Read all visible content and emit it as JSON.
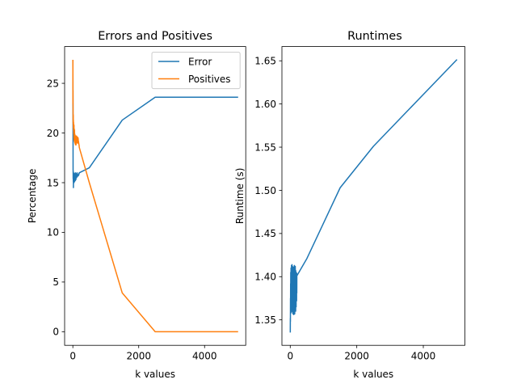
{
  "chart_data": [
    {
      "type": "line",
      "title": "Errors and Positives",
      "xlabel": "k values",
      "ylabel": "Percentage",
      "xlim": [
        -250,
        5250
      ],
      "ylim": [
        -1.37,
        28.7
      ],
      "xticks": [
        0,
        2000,
        4000
      ],
      "xtick_labels": [
        "0",
        "2000",
        "4000"
      ],
      "yticks": [
        0,
        5,
        10,
        15,
        20,
        25
      ],
      "ytick_labels": [
        "0",
        "5",
        "10",
        "15",
        "20",
        "25"
      ],
      "grid": false,
      "legend_position": "top-right",
      "series": [
        {
          "name": "Error",
          "color": "#1f77b4",
          "x": [
            1,
            3,
            5,
            7,
            9,
            11,
            13,
            15,
            17,
            19,
            21,
            23,
            25,
            27,
            29,
            31,
            33,
            35,
            37,
            39,
            41,
            43,
            45,
            47,
            49,
            51,
            53,
            55,
            57,
            59,
            61,
            63,
            65,
            67,
            69,
            71,
            73,
            75,
            77,
            79,
            81,
            83,
            85,
            87,
            89,
            91,
            93,
            95,
            97,
            99,
            101,
            103,
            105,
            107,
            109,
            111,
            113,
            115,
            117,
            119,
            121,
            123,
            125,
            127,
            129,
            131,
            133,
            135,
            137,
            139,
            141,
            143,
            145,
            147,
            149,
            151,
            153,
            155,
            157,
            159,
            161,
            163,
            165,
            167,
            169,
            171,
            173,
            175,
            177,
            179,
            181,
            183,
            185,
            187,
            189,
            191,
            193,
            195,
            197,
            199,
            500,
            1500,
            2500,
            5000
          ],
          "values": [
            27.3,
            24.1,
            22.0,
            16.3,
            15.4,
            16.2,
            15.1,
            15.9,
            14.5,
            15.6,
            15.3,
            16.0,
            15.0,
            15.7,
            15.2,
            15.4,
            15.0,
            15.8,
            15.3,
            15.6,
            15.1,
            15.6,
            15.2,
            15.9,
            15.4,
            15.5,
            15.1,
            15.7,
            15.3,
            15.6,
            15.2,
            15.5,
            15.3,
            15.8,
            15.4,
            15.6,
            15.2,
            16.0,
            15.4,
            15.6,
            15.3,
            15.7,
            15.5,
            15.9,
            15.4,
            15.6,
            15.3,
            15.8,
            15.5,
            15.6,
            15.6,
            15.7,
            15.5,
            15.9,
            15.6,
            15.7,
            15.5,
            15.8,
            15.6,
            15.8,
            15.7,
            15.7,
            15.6,
            16.0,
            15.6,
            15.7,
            15.7,
            15.8,
            15.6,
            15.7,
            15.7,
            15.8,
            15.7,
            15.7,
            15.7,
            15.8,
            15.7,
            15.8,
            15.7,
            15.7,
            15.8,
            15.8,
            15.8,
            15.7,
            15.8,
            15.8,
            15.8,
            15.9,
            15.8,
            15.9,
            15.8,
            15.9,
            15.9,
            15.9,
            15.9,
            15.9,
            16.0,
            16.0,
            16.0,
            16.0,
            16.5,
            21.3,
            23.6,
            23.6
          ]
        },
        {
          "name": "Positives",
          "color": "#ff7f0e",
          "x": [
            1,
            3,
            5,
            7,
            9,
            11,
            13,
            15,
            17,
            19,
            21,
            23,
            25,
            27,
            29,
            31,
            33,
            35,
            37,
            39,
            41,
            43,
            45,
            47,
            49,
            51,
            53,
            55,
            57,
            59,
            61,
            63,
            65,
            67,
            69,
            71,
            73,
            75,
            77,
            79,
            81,
            83,
            85,
            87,
            89,
            91,
            93,
            95,
            97,
            99,
            101,
            103,
            105,
            107,
            109,
            111,
            113,
            115,
            117,
            119,
            121,
            123,
            125,
            127,
            129,
            131,
            133,
            135,
            137,
            139,
            141,
            143,
            145,
            147,
            149,
            151,
            153,
            155,
            157,
            159,
            161,
            163,
            165,
            167,
            169,
            171,
            173,
            175,
            177,
            179,
            181,
            183,
            185,
            187,
            189,
            191,
            193,
            195,
            197,
            199,
            500,
            1500,
            2500,
            5000
          ],
          "values": [
            27.3,
            22.9,
            24.3,
            21.0,
            21.9,
            20.8,
            21.8,
            20.5,
            21.3,
            20.6,
            21.1,
            20.2,
            20.9,
            19.9,
            20.6,
            20.2,
            19.5,
            20.8,
            19.3,
            20.1,
            19.6,
            20.4,
            19.2,
            19.9,
            19.5,
            20.3,
            19.1,
            19.8,
            19.4,
            19.9,
            19.0,
            19.7,
            19.3,
            19.8,
            19.1,
            19.6,
            18.9,
            19.7,
            19.2,
            19.6,
            18.8,
            19.5,
            19.1,
            19.7,
            18.9,
            19.4,
            19.2,
            19.5,
            18.8,
            19.4,
            19.3,
            19.5,
            19.1,
            19.3,
            19.0,
            19.7,
            19.3,
            19.6,
            19.2,
            19.4,
            19.1,
            19.4,
            19.0,
            19.5,
            19.4,
            19.5,
            19.2,
            19.3,
            19.0,
            19.6,
            19.3,
            19.4,
            19.1,
            19.4,
            19.0,
            19.4,
            19.2,
            19.3,
            19.0,
            19.5,
            19.2,
            19.4,
            19.1,
            19.2,
            19.1,
            19.2,
            19.0,
            19.1,
            18.9,
            19.0,
            18.9,
            18.9,
            18.8,
            18.8,
            18.8,
            18.7,
            18.6,
            18.6,
            18.5,
            18.5,
            15.0,
            3.9,
            0.0,
            0.0
          ]
        }
      ]
    },
    {
      "type": "line",
      "title": "Runtimes",
      "xlabel": "k values",
      "ylabel": "Runtime (s)",
      "xlim": [
        -250,
        5250
      ],
      "ylim": [
        1.3205,
        1.6665
      ],
      "xticks": [
        0,
        2000,
        4000
      ],
      "xtick_labels": [
        "0",
        "2000",
        "4000"
      ],
      "yticks": [
        1.35,
        1.4,
        1.45,
        1.5,
        1.55,
        1.6,
        1.65
      ],
      "ytick_labels": [
        "1.35",
        "1.40",
        "1.45",
        "1.50",
        "1.55",
        "1.60",
        "1.65"
      ],
      "grid": false,
      "series": [
        {
          "color": "#1f77b4",
          "x": [
            1,
            3,
            5,
            7,
            9,
            11,
            13,
            15,
            17,
            19,
            21,
            23,
            25,
            27,
            29,
            31,
            33,
            35,
            37,
            39,
            41,
            43,
            45,
            47,
            49,
            51,
            53,
            55,
            57,
            59,
            61,
            63,
            65,
            67,
            69,
            71,
            73,
            75,
            77,
            79,
            81,
            83,
            85,
            87,
            89,
            91,
            93,
            95,
            97,
            99,
            101,
            103,
            105,
            107,
            109,
            111,
            113,
            115,
            117,
            119,
            121,
            123,
            125,
            127,
            129,
            131,
            133,
            135,
            137,
            139,
            141,
            143,
            145,
            147,
            149,
            151,
            153,
            155,
            157,
            159,
            161,
            163,
            165,
            167,
            169,
            171,
            173,
            175,
            177,
            179,
            181,
            183,
            185,
            187,
            189,
            191,
            193,
            195,
            197,
            199,
            500,
            1500,
            2500,
            5000
          ],
          "values": [
            1.336,
            1.352,
            1.348,
            1.375,
            1.365,
            1.392,
            1.361,
            1.405,
            1.37,
            1.398,
            1.358,
            1.41,
            1.382,
            1.366,
            1.401,
            1.372,
            1.394,
            1.36,
            1.413,
            1.378,
            1.386,
            1.365,
            1.402,
            1.37,
            1.397,
            1.362,
            1.414,
            1.38,
            1.367,
            1.403,
            1.371,
            1.395,
            1.359,
            1.412,
            1.383,
            1.369,
            1.4,
            1.374,
            1.39,
            1.357,
            1.408,
            1.381,
            1.366,
            1.402,
            1.372,
            1.396,
            1.36,
            1.411,
            1.384,
            1.37,
            1.399,
            1.375,
            1.393,
            1.356,
            1.409,
            1.382,
            1.368,
            1.404,
            1.371,
            1.397,
            1.358,
            1.413,
            1.385,
            1.366,
            1.401,
            1.373,
            1.392,
            1.357,
            1.41,
            1.38,
            1.369,
            1.403,
            1.374,
            1.395,
            1.361,
            1.412,
            1.383,
            1.37,
            1.4,
            1.376,
            1.391,
            1.36,
            1.407,
            1.386,
            1.372,
            1.398,
            1.379,
            1.394,
            1.365,
            1.405,
            1.388,
            1.375,
            1.399,
            1.382,
            1.393,
            1.372,
            1.404,
            1.39,
            1.381,
            1.401,
            1.421,
            1.503,
            1.551,
            1.651
          ]
        }
      ]
    }
  ]
}
